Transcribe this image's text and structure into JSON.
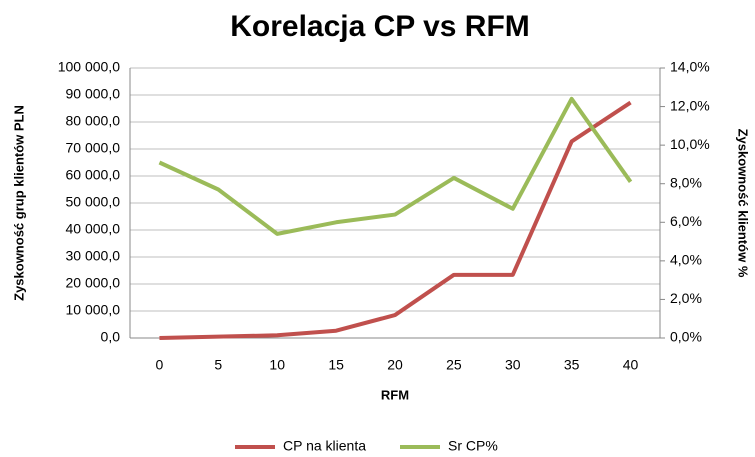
{
  "chart_data": {
    "type": "line",
    "title": "Korelacja CP vs RFM",
    "x_label": "RFM",
    "y_label": "Zyskowność  grup klientów PLN",
    "y2_label": "Zyskowność  klientów %",
    "categories": [
      "0",
      "5",
      "10",
      "15",
      "20",
      "25",
      "30",
      "35",
      "40"
    ],
    "series": [
      {
        "name": "CP na klienta",
        "color": "#c0504d",
        "values": [
          0,
          500,
          1000,
          2700,
          8500,
          23400,
          23400,
          72800,
          87200
        ]
      },
      {
        "name": "Sr CP%",
        "color": "#9bbb59",
        "axis": "y2",
        "values": [
          9.1,
          7.7,
          5.4,
          6.0,
          6.4,
          8.3,
          6.7,
          12.4,
          8.1
        ]
      }
    ],
    "ylim": [
      0,
      100000
    ],
    "yticks": [
      {
        "value": 0,
        "label": "0,0"
      },
      {
        "value": 10000,
        "label": "10 000,0"
      },
      {
        "value": 20000,
        "label": "20 000,0"
      },
      {
        "value": 30000,
        "label": "30 000,0"
      },
      {
        "value": 40000,
        "label": "40 000,0"
      },
      {
        "value": 50000,
        "label": "50 000,0"
      },
      {
        "value": 60000,
        "label": "60 000,0"
      },
      {
        "value": 70000,
        "label": "70 000,0"
      },
      {
        "value": 80000,
        "label": "80 000,0"
      },
      {
        "value": 90000,
        "label": "90 000,0"
      },
      {
        "value": 100000,
        "label": "100 000,0"
      }
    ],
    "y2lim": [
      0,
      14
    ],
    "y2ticks": [
      {
        "value": 0,
        "label": "0,0%"
      },
      {
        "value": 2,
        "label": "2,0%"
      },
      {
        "value": 4,
        "label": "4,0%"
      },
      {
        "value": 6,
        "label": "6,0%"
      },
      {
        "value": 8,
        "label": "8,0%"
      },
      {
        "value": 10,
        "label": "10,0%"
      },
      {
        "value": 12,
        "label": "12,0%"
      },
      {
        "value": 14,
        "label": "14,0%"
      }
    ],
    "grid": true,
    "legend": "bottom"
  }
}
